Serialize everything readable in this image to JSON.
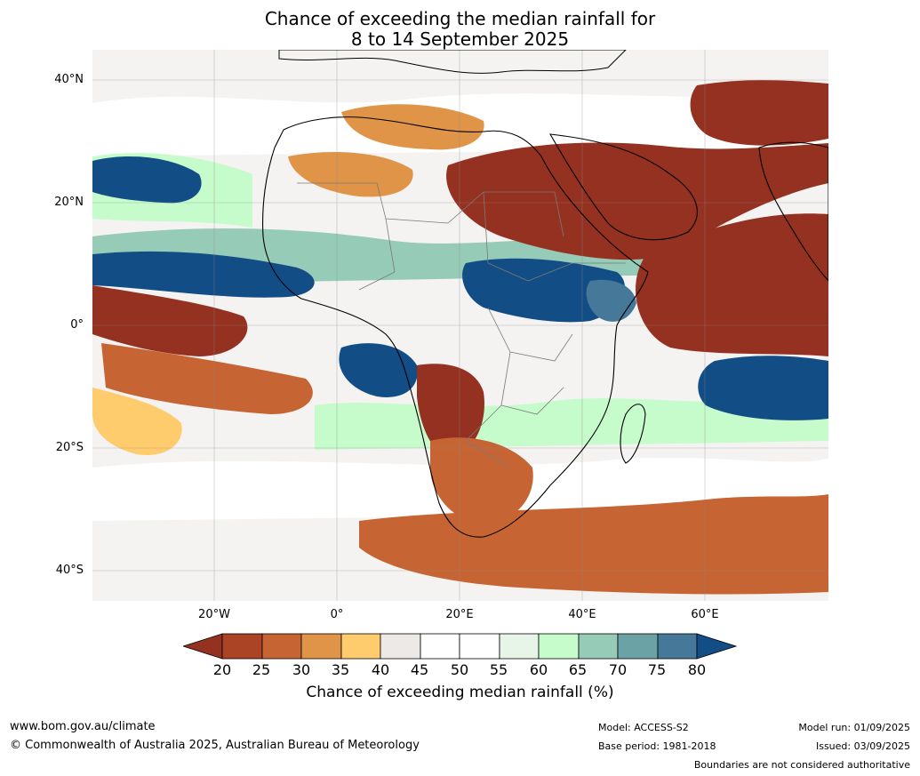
{
  "title": {
    "line1": "Chance of exceeding the median rainfall for",
    "line2": "8 to 14 September 2025"
  },
  "map": {
    "lat_labels": [
      "40°N",
      "20°N",
      "0°",
      "20°S",
      "40°S"
    ],
    "lon_labels": [
      "20°W",
      "0°",
      "20°E",
      "40°E",
      "60°E"
    ]
  },
  "colorbar": {
    "label": "Chance of exceeding median rainfall (%)",
    "ticks": [
      "20",
      "25",
      "30",
      "35",
      "40",
      "45",
      "50",
      "55",
      "60",
      "65",
      "70",
      "75",
      "80"
    ],
    "colors": [
      "#953121",
      "#aa4425",
      "#c66533",
      "#e09448",
      "#fecb6d",
      "#ece9e6",
      "#ffffff",
      "#ffffff",
      "#e7f5e9",
      "#c6fbcb",
      "#96cbb8",
      "#6aa2a6",
      "#46789a",
      "#134d86"
    ]
  },
  "footer": {
    "website": "www.bom.gov.au/climate",
    "copyright": "© Commonwealth of Australia 2025, Australian Bureau of Meteorology",
    "model": "Model: ACCESS-S2",
    "base_period": "Base period: 1981-2018",
    "model_run": "Model run: 01/09/2025",
    "issued": "Issued: 03/09/2025",
    "disclaimer": "Boundaries are not considered authoritative"
  }
}
